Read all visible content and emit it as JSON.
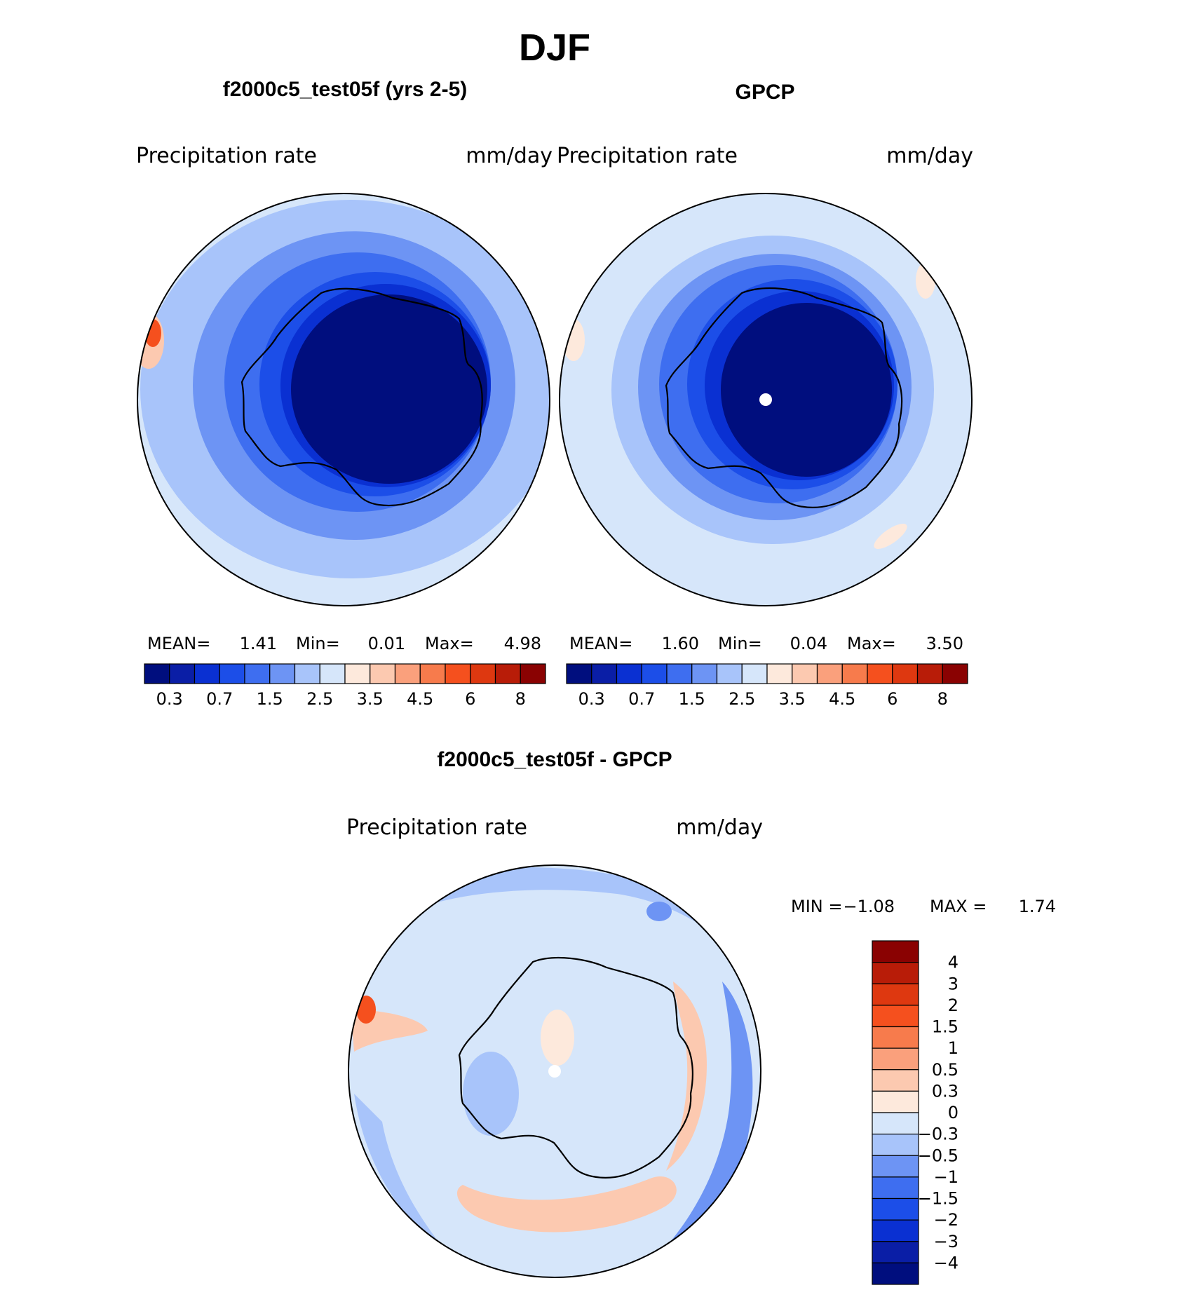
{
  "page_title": "DJF",
  "panels": [
    {
      "title": "f2000c5_test05f (yrs 2-5)",
      "variable": "Precipitation  rate",
      "units": "mm/day",
      "stats": {
        "mean_label": "MEAN=",
        "mean": "1.41",
        "min_label": "Min=",
        "min": "0.01",
        "max_label": "Max=",
        "max": "4.98"
      }
    },
    {
      "title": "GPCP",
      "variable": "Precipitation  rate",
      "units": "mm/day",
      "stats": {
        "mean_label": "MEAN=",
        "mean": "1.60",
        "min_label": "Min=",
        "min": "0.04",
        "max_label": "Max=",
        "max": "3.50"
      }
    }
  ],
  "diff_panel": {
    "title": "f2000c5_test05f - GPCP",
    "variable": "Precipitation  rate",
    "units": "mm/day",
    "min_label": "MIN =",
    "min": "−1.08",
    "max_label": "MAX =",
    "max": "1.74"
  },
  "chart_data": [
    {
      "type": "heatmap",
      "projection": "south polar stereographic",
      "title": "f2000c5_test05f (yrs 2-5)",
      "variable": "Precipitation rate",
      "units": "mm/day",
      "mean": 1.41,
      "min": 0.01,
      "max": 4.98,
      "colorbar_levels": [
        0.2,
        0.3,
        0.5,
        0.7,
        1,
        1.5,
        2,
        2.5,
        3,
        3.5,
        4,
        4.5,
        5,
        6,
        7,
        8
      ],
      "colorbar_tick_labels": [
        "0.3",
        "0.7",
        "1.5",
        "2.5",
        "3.5",
        "4.5",
        "6",
        "8"
      ],
      "colors": [
        "#000e7e",
        "#0a1ea6",
        "#0a30d2",
        "#1c4ee8",
        "#3e6ef0",
        "#6d94f4",
        "#a8c4fa",
        "#d6e6fa",
        "#fde9dc",
        "#fcc9b0",
        "#faa07c",
        "#f77b4c",
        "#f5501e",
        "#de3810",
        "#b81c08",
        "#8a0202"
      ]
    },
    {
      "type": "heatmap",
      "projection": "south polar stereographic",
      "title": "GPCP",
      "variable": "Precipitation rate",
      "units": "mm/day",
      "mean": 1.6,
      "min": 0.04,
      "max": 3.5,
      "colorbar_levels": [
        0.2,
        0.3,
        0.5,
        0.7,
        1,
        1.5,
        2,
        2.5,
        3,
        3.5,
        4,
        4.5,
        5,
        6,
        7,
        8
      ],
      "colorbar_tick_labels": [
        "0.3",
        "0.7",
        "1.5",
        "2.5",
        "3.5",
        "4.5",
        "6",
        "8"
      ],
      "colors": [
        "#000e7e",
        "#0a1ea6",
        "#0a30d2",
        "#1c4ee8",
        "#3e6ef0",
        "#6d94f4",
        "#a8c4fa",
        "#d6e6fa",
        "#fde9dc",
        "#fcc9b0",
        "#faa07c",
        "#f77b4c",
        "#f5501e",
        "#de3810",
        "#b81c08",
        "#8a0202"
      ]
    },
    {
      "type": "heatmap",
      "projection": "south polar stereographic",
      "title": "f2000c5_test05f - GPCP",
      "variable": "Precipitation rate",
      "units": "mm/day",
      "min": -1.08,
      "max": 1.74,
      "colorbar_tick_labels": [
        "4",
        "3",
        "2",
        "1.5",
        "1",
        "0.5",
        "0.3",
        "0",
        "−0.3",
        "−0.5",
        "−1",
        "−1.5",
        "−2",
        "−3",
        "−4"
      ],
      "colors": [
        "#8a0202",
        "#b81c08",
        "#de3810",
        "#f5501e",
        "#f77b4c",
        "#faa07c",
        "#fcc9b0",
        "#fde9dc",
        "#d6e6fa",
        "#a8c4fa",
        "#6d94f4",
        "#3e6ef0",
        "#1c4ee8",
        "#0a30d2",
        "#0a1ea6",
        "#000e7e"
      ]
    }
  ]
}
